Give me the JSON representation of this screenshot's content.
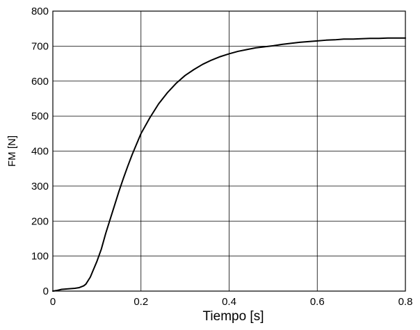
{
  "chart_data": {
    "type": "line",
    "title": "",
    "xlabel": "Tiempo [s]",
    "ylabel": "FM [N]",
    "xlim": [
      0,
      0.8
    ],
    "ylim": [
      0,
      800
    ],
    "grid": true,
    "xticks": [
      0,
      0.2,
      0.4,
      0.6,
      0.8
    ],
    "xtick_labels": [
      "0",
      "0.2",
      "0.4",
      "0.6",
      "0.8"
    ],
    "yticks": [
      0,
      100,
      200,
      300,
      400,
      500,
      600,
      700,
      800
    ],
    "ytick_labels": [
      "0",
      "100",
      "200",
      "300",
      "400",
      "500",
      "600",
      "700",
      "800"
    ],
    "series": [
      {
        "color": "#000000",
        "x": [
          0,
          0.01,
          0.02,
          0.03,
          0.04,
          0.05,
          0.06,
          0.07,
          0.075,
          0.08,
          0.085,
          0.09,
          0.1,
          0.11,
          0.12,
          0.13,
          0.14,
          0.15,
          0.16,
          0.17,
          0.18,
          0.19,
          0.2,
          0.22,
          0.24,
          0.26,
          0.28,
          0.3,
          0.32,
          0.34,
          0.36,
          0.38,
          0.4,
          0.42,
          0.44,
          0.46,
          0.48,
          0.5,
          0.52,
          0.54,
          0.56,
          0.58,
          0.6,
          0.62,
          0.64,
          0.66,
          0.68,
          0.7,
          0.72,
          0.74,
          0.76,
          0.78,
          0.8
        ],
        "y": [
          0,
          2,
          5,
          6,
          7,
          8,
          10,
          15,
          20,
          30,
          40,
          55,
          85,
          120,
          165,
          205,
          245,
          285,
          322,
          357,
          390,
          420,
          450,
          495,
          535,
          567,
          594,
          616,
          633,
          648,
          660,
          670,
          678,
          685,
          690,
          695,
          698,
          701,
          705,
          708,
          711,
          713,
          715,
          717,
          718,
          720,
          720,
          721,
          722,
          722,
          723,
          723,
          723
        ]
      }
    ]
  }
}
